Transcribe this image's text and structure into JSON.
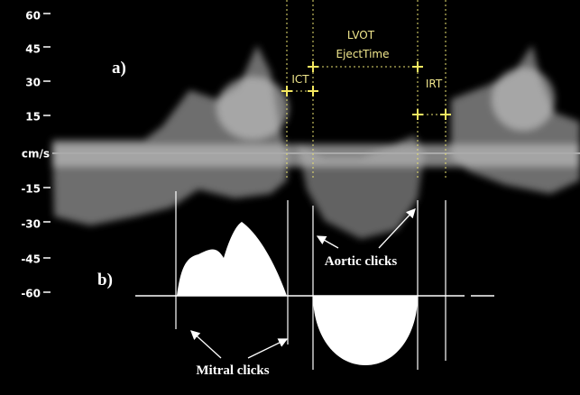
{
  "axis": {
    "ticks": [
      "60",
      "45",
      "30",
      "15",
      "cm/s",
      "-15",
      "-30",
      "-45",
      "-60"
    ]
  },
  "panel_labels": [
    "a)",
    "b)"
  ],
  "annotations": {
    "lvot": "LVOT",
    "eject_time": "EjectTime",
    "ict": "ICT",
    "irt": "IRT",
    "aortic": "Aortic clicks",
    "mitral": "Mitral clicks"
  }
}
